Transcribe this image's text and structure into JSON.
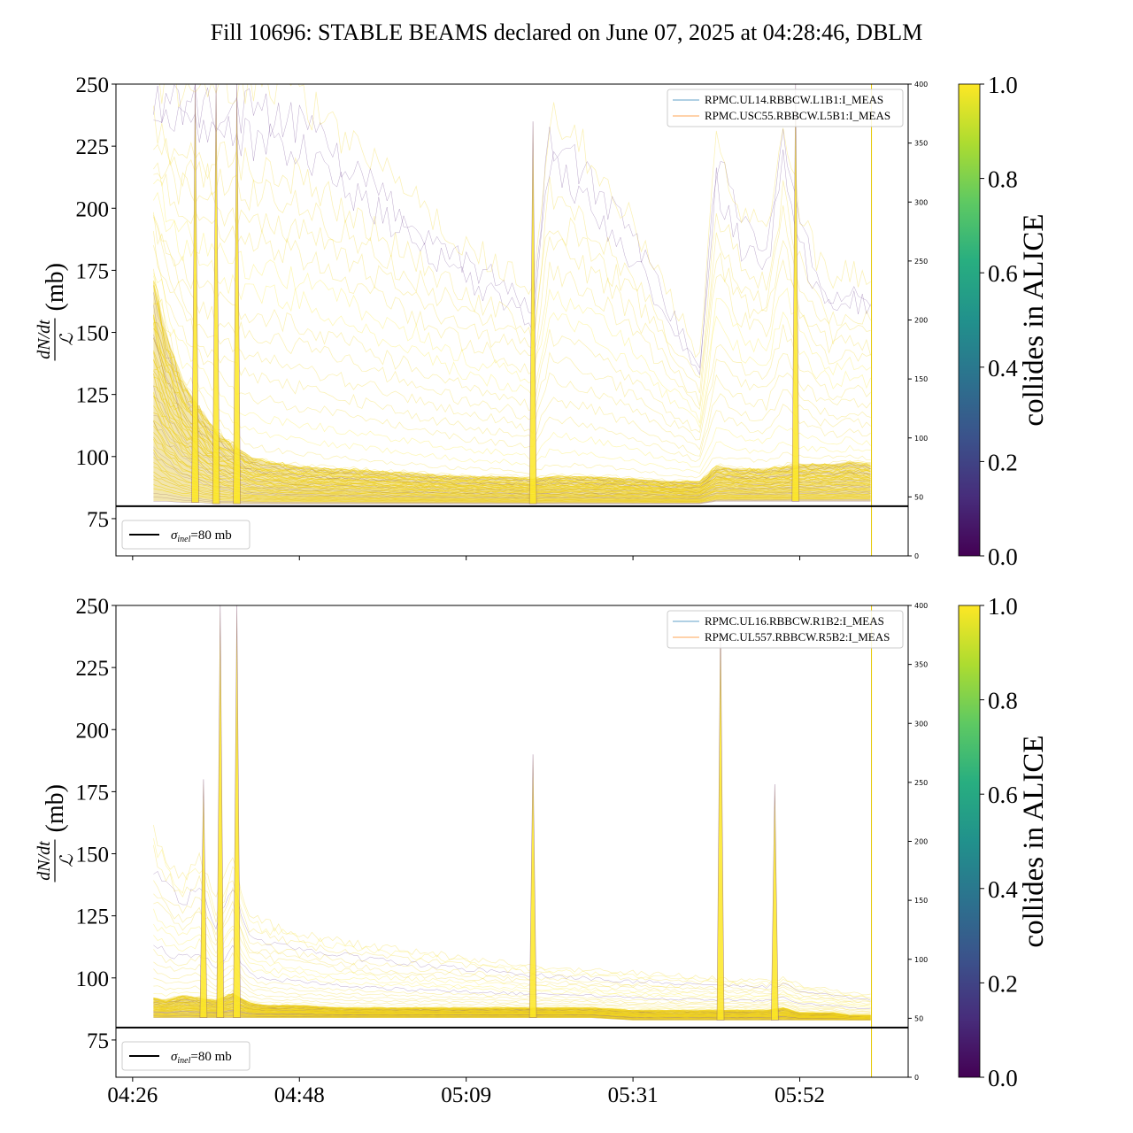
{
  "title": "Fill 10696: STABLE BEAMS declared on June 07, 2025 at 04:28:46, DBLM",
  "colorbar": {
    "label": "collides in ALICE",
    "ticks": [
      "0.0",
      "0.2",
      "0.4",
      "0.6",
      "0.8",
      "1.0"
    ],
    "colors": [
      "#440154",
      "#472d7b",
      "#3b528b",
      "#2c728e",
      "#21918c",
      "#28ae80",
      "#5ec962",
      "#addc30",
      "#fde725"
    ]
  },
  "reference_line": {
    "value": 80,
    "label_sigma": "σ",
    "label_sub": "inel",
    "label_rest": "=80 mb",
    "color": "#000000"
  },
  "ylabel": {
    "num": "dN/dt",
    "den": "ℒ",
    "unit": "(mb)"
  },
  "chart_data": [
    {
      "type": "line",
      "name": "top",
      "ylim": [
        60,
        250
      ],
      "yticks": [
        "75",
        "100",
        "125",
        "150",
        "175",
        "200",
        "225",
        "250"
      ],
      "ylim_right": [
        0,
        400
      ],
      "yticks_right": [
        "0",
        "50",
        "100",
        "150",
        "200",
        "250",
        "300",
        "350",
        "400"
      ],
      "xlim_minutes": [
        -2,
        93
      ],
      "xtick_minutes": [
        0,
        20,
        40,
        60,
        80
      ],
      "legend": [
        {
          "label": "RPMC.UL14.RBBCW.L1B1:I_MEAS",
          "color": "#1f77b4"
        },
        {
          "label": "RPMC.USC55.RBBCW.L5B1:I_MEAS",
          "color": "#ff7f0e"
        }
      ],
      "envelope": {
        "minutes": [
          2.5,
          4,
          6,
          8,
          10,
          12,
          14,
          16,
          20,
          25,
          30,
          35,
          40,
          45,
          48,
          50,
          55,
          60,
          65,
          68,
          70,
          73,
          76,
          78,
          80,
          82,
          84,
          86,
          88.5
        ],
        "upper": [
          250,
          250,
          250,
          250,
          250,
          250,
          250,
          250,
          245,
          230,
          215,
          200,
          185,
          175,
          165,
          240,
          220,
          195,
          160,
          140,
          230,
          200,
          190,
          240,
          200,
          180,
          170,
          175,
          170
        ],
        "band": [
          170,
          150,
          130,
          120,
          110,
          105,
          100,
          98,
          96,
          95,
          94,
          93,
          92,
          92,
          91,
          92,
          92,
          91,
          90,
          90,
          96,
          95,
          95,
          96,
          97,
          97,
          97,
          98,
          97
        ],
        "base": [
          82,
          82,
          81.5,
          81.5,
          81,
          81,
          81,
          81,
          81,
          81,
          81,
          81,
          81,
          81,
          81,
          81,
          81,
          81,
          81,
          81,
          82,
          82,
          82,
          82,
          82,
          82,
          82,
          82,
          82
        ]
      },
      "spikes": [
        {
          "minute": 7.5,
          "height": 250
        },
        {
          "minute": 10,
          "height": 250
        },
        {
          "minute": 12.5,
          "height": 250
        },
        {
          "minute": 48,
          "height": 235
        },
        {
          "minute": 79.5,
          "height": 250
        }
      ]
    },
    {
      "type": "line",
      "name": "bottom",
      "ylim": [
        60,
        250
      ],
      "yticks": [
        "75",
        "100",
        "125",
        "150",
        "175",
        "200",
        "225",
        "250"
      ],
      "ylim_right": [
        0,
        400
      ],
      "yticks_right": [
        "0",
        "50",
        "100",
        "150",
        "200",
        "250",
        "300",
        "350",
        "400"
      ],
      "xlim_minutes": [
        -2,
        93
      ],
      "xtick_minutes": [
        0,
        20,
        40,
        60,
        80
      ],
      "xtick_labels": [
        "04:26",
        "04:48",
        "05:09",
        "05:31",
        "05:52"
      ],
      "legend": [
        {
          "label": "RPMC.UL16.RBBCW.R1B2:I_MEAS",
          "color": "#1f77b4"
        },
        {
          "label": "RPMC.UL557.RBBCW.R5B2:I_MEAS",
          "color": "#ff7f0e"
        }
      ],
      "envelope": {
        "minutes": [
          2.5,
          4,
          6,
          8,
          10,
          12,
          14,
          16,
          20,
          25,
          30,
          35,
          40,
          45,
          48,
          50,
          55,
          60,
          65,
          68,
          70,
          73,
          76,
          78,
          80,
          82,
          84,
          86,
          88.5
        ],
        "upper": [
          160,
          150,
          140,
          150,
          130,
          150,
          125,
          122,
          118,
          115,
          112,
          110,
          108,
          106,
          105,
          104,
          103,
          102,
          101,
          100,
          100,
          99,
          99,
          100,
          97,
          96,
          95,
          94,
          93
        ],
        "band": [
          92,
          91,
          93,
          92,
          91,
          94,
          90,
          89,
          89,
          88,
          88,
          88,
          88,
          88,
          88,
          88,
          88,
          87,
          87,
          87,
          87,
          87,
          87,
          88,
          86,
          86,
          86,
          85,
          85
        ],
        "base": [
          84,
          84,
          84,
          84,
          84,
          84,
          84,
          84,
          84,
          84,
          84,
          84,
          84,
          84,
          84,
          84,
          84,
          83,
          83,
          83,
          83,
          83,
          83,
          83,
          83,
          83,
          83,
          83,
          83
        ]
      },
      "spikes": [
        {
          "minute": 8.5,
          "height": 180
        },
        {
          "minute": 10.5,
          "height": 250
        },
        {
          "minute": 12.5,
          "height": 250
        },
        {
          "minute": 48,
          "height": 190
        },
        {
          "minute": 70.5,
          "height": 245
        },
        {
          "minute": 77,
          "height": 178
        }
      ]
    }
  ]
}
